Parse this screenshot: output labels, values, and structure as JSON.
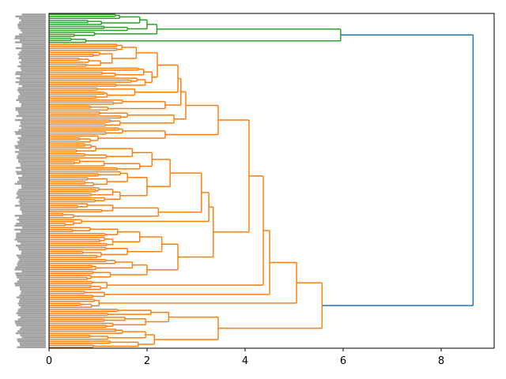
{
  "chart_data": {
    "type": "dendrogram",
    "orientation": "left",
    "title": "",
    "xlabel": "",
    "ylabel": "",
    "xlim": [
      0,
      9.08
    ],
    "xticks": [
      "0",
      "2",
      "4",
      "6",
      "8"
    ],
    "xtick_values": [
      0,
      2,
      4,
      6,
      8
    ],
    "grid": false,
    "leaf_labels_legible": false,
    "colors": {
      "above_threshold": "#1f77b4",
      "cluster_1": "#2ca02c",
      "cluster_2": "#ff7f0e",
      "axis": "#000000",
      "leaf_label": "#555555"
    },
    "tree": {
      "h": 8.65,
      "color": "above_threshold",
      "c": [
        {
          "h": 5.95,
          "color": "cluster_1",
          "c": [
            {
              "h": 2.2,
              "c": [
                {
                  "h": 2.0,
                  "c": [
                    {
                      "h": 1.85,
                      "c": [
                        {
                          "h": 1.44,
                          "c": [
                            {
                              "h": 1.35,
                              "n": 2
                            },
                            {
                              "h": 1.0,
                              "n": 1
                            }
                          ]
                        },
                        {
                          "h": 1.07,
                          "n": 3
                        }
                      ]
                    },
                    {
                      "h": 1.6,
                      "n": 3
                    }
                  ]
                },
                {
                  "h": 0.93,
                  "n": 3
                }
              ]
            },
            {
              "h": 0.75,
              "c": [
                {
                  "h": 0.45,
                  "n": 2
                },
                {
                  "h": 0.1,
                  "n": 1
                }
              ]
            }
          ]
        },
        {
          "h": 5.57,
          "color": "cluster_2",
          "c": [
            {
              "h": 5.05,
              "c": [
                {
                  "h": 4.5,
                  "c": [
                    {
                      "h": 4.37,
                      "c": [
                        {
                          "h": 4.08,
                          "c": [
                            {
                              "h": 3.45,
                              "c": [
                                {
                                  "h": 2.79,
                                  "c": [
                                    {
                                      "h": 2.69,
                                      "c": [
                                        {
                                          "h": 2.63,
                                          "c": [
                                            {
                                              "h": 2.21,
                                              "c": [
                                                {
                                                  "h": 1.78,
                                                  "n": 12
                                                },
                                                {
                                                  "h": 2.1,
                                                  "n": 10
                                                }
                                              ]
                                            },
                                            {
                                              "h": 1.75,
                                              "n": 6
                                            }
                                          ]
                                        },
                                        {
                                          "h": 2.37,
                                          "c": [
                                            {
                                              "h": 1.5,
                                              "n": 3
                                            },
                                            {
                                              "h": 1.2,
                                              "n": 3
                                            }
                                          ]
                                        }
                                      ]
                                    },
                                    {
                                      "h": 2.55,
                                      "c": [
                                        {
                                          "h": 1.6,
                                          "n": 4
                                        },
                                        {
                                          "h": 1.45,
                                          "n": 4
                                        }
                                      ]
                                    }
                                  ]
                                },
                                {
                                  "h": 2.37,
                                  "c": [
                                    {
                                      "h": 1.5,
                                      "n": 4
                                    },
                                    {
                                      "h": 1.0,
                                      "n": 4
                                    }
                                  ]
                                }
                              ]
                            },
                            {
                              "h": 3.35,
                              "c": [
                                {
                                  "h": 3.26,
                                  "c": [
                                    {
                                      "h": 3.11,
                                      "c": [
                                        {
                                          "h": 2.47,
                                          "c": [
                                            {
                                              "h": 2.1,
                                              "c": [
                                                {
                                                  "h": 1.7,
                                                  "n": 8
                                                },
                                                {
                                                  "h": 1.85,
                                                  "n": 6
                                                }
                                              ]
                                            },
                                            {
                                              "h": 2.0,
                                              "c": [
                                                {
                                                  "h": 1.6,
                                                  "n": 8
                                                },
                                                {
                                                  "h": 1.45,
                                                  "n": 8
                                                }
                                              ]
                                            }
                                          ]
                                        },
                                        {
                                          "h": 2.23,
                                          "c": [
                                            {
                                              "h": 1.3,
                                              "n": 5
                                            },
                                            {
                                              "h": 0.5,
                                              "n": 3
                                            }
                                          ]
                                        }
                                      ]
                                    },
                                    {
                                      "h": 0.66,
                                      "n": 4
                                    }
                                  ]
                                },
                                {
                                  "h": 2.63,
                                  "c": [
                                    {
                                      "h": 2.3,
                                      "c": [
                                        {
                                          "h": 1.85,
                                          "c": [
                                            {
                                              "h": 1.4,
                                              "n": 5
                                            },
                                            {
                                              "h": 1.3,
                                              "n": 5
                                            }
                                          ]
                                        },
                                        {
                                          "h": 1.6,
                                          "n": 6
                                        }
                                      ]
                                    },
                                    {
                                      "h": 2.0,
                                      "c": [
                                        {
                                          "h": 1.7,
                                          "n": 6
                                        },
                                        {
                                          "h": 1.25,
                                          "n": 5
                                        }
                                      ]
                                    }
                                  ]
                                }
                              ]
                            }
                          ]
                        },
                        {
                          "h": 1.18,
                          "n": 5
                        }
                      ]
                    },
                    {
                      "h": 1.13,
                      "n": 4
                    }
                  ]
                },
                {
                  "h": 1.02,
                  "n": 5
                }
              ]
            },
            {
              "h": 3.45,
              "c": [
                {
                  "h": 2.44,
                  "c": [
                    {
                      "h": 2.08,
                      "c": [
                        {
                          "h": 1.4,
                          "n": 2
                        },
                        {
                          "h": 1.2,
                          "n": 2
                        }
                      ]
                    },
                    {
                      "h": 1.97,
                      "c": [
                        {
                          "h": 1.55,
                          "n": 3
                        },
                        {
                          "h": 1.3,
                          "n": 3
                        }
                      ]
                    }
                  ]
                },
                {
                  "h": 2.15,
                  "c": [
                    {
                      "h": 1.97,
                      "c": [
                        {
                          "h": 1.5,
                          "n": 3
                        },
                        {
                          "h": 1.2,
                          "n": 3
                        }
                      ]
                    },
                    {
                      "h": 1.82,
                      "c": [
                        {
                          "h": 1.25,
                          "n": 2
                        },
                        {
                          "h": 0.9,
                          "n": 2
                        }
                      ]
                    }
                  ]
                }
              ]
            }
          ]
        }
      ]
    }
  }
}
